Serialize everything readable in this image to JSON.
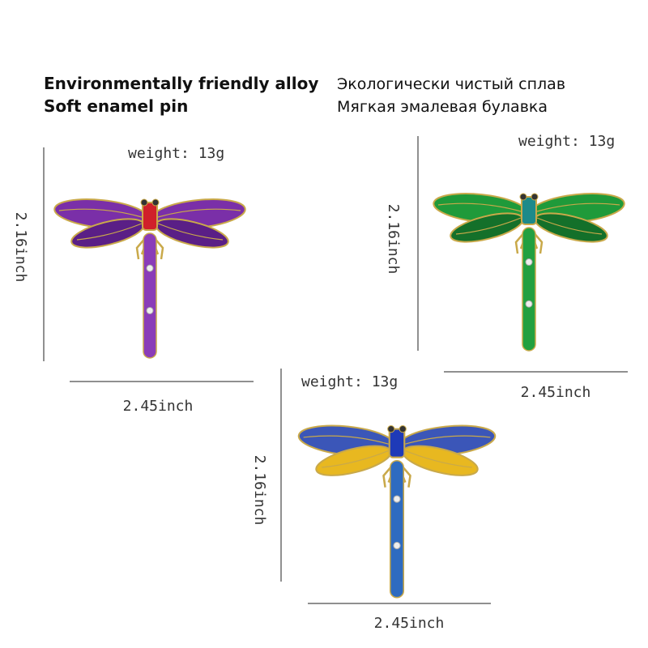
{
  "header": {
    "english": [
      "Environmentally friendly alloy",
      "Soft enamel pin"
    ],
    "russian": [
      "Экологически чистый сплав",
      "Мягкая эмалевая булавка"
    ]
  },
  "products": [
    {
      "weight": "weight: 13g",
      "height": "2.16inch",
      "width": "2.45inch"
    },
    {
      "weight": "weight: 13g",
      "height": "2.16inch",
      "width": "2.45inch"
    },
    {
      "weight": "weight: 13g",
      "height": "2.16inch",
      "width": "2.45inch"
    }
  ]
}
